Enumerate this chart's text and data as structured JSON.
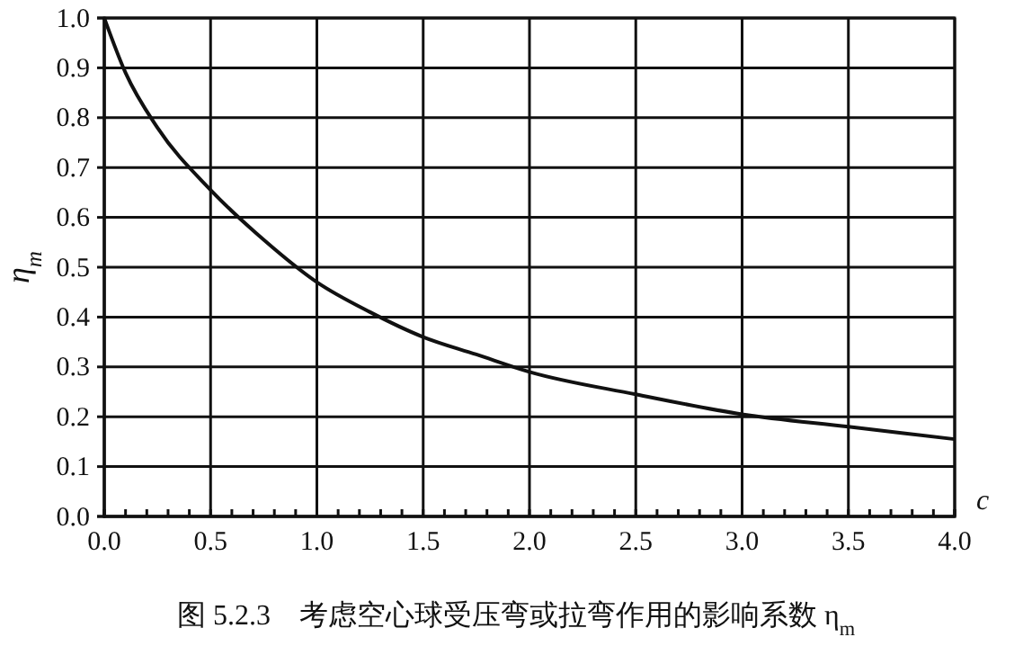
{
  "chart_data": {
    "type": "line",
    "title": "图 5.2.3　考虑空心球受压弯或拉弯作用的影响系数 η$_{m}$",
    "xlabel": "c",
    "ylabel": "η$_{m}$",
    "x": [
      0,
      0.1,
      0.25,
      0.5,
      0.75,
      1.0,
      1.25,
      1.5,
      1.75,
      2.0,
      2.5,
      3.0,
      3.5,
      4.0
    ],
    "series": [
      {
        "color": "#111111",
        "values": [
          1.0,
          0.89,
          0.78,
          0.655,
          0.555,
          0.47,
          0.41,
          0.36,
          0.325,
          0.29,
          0.245,
          0.205,
          0.18,
          0.155
        ]
      }
    ],
    "xlim": [
      0,
      4
    ],
    "ylim": [
      0,
      1
    ],
    "xticks": [
      {
        "value": 0,
        "label": "0.0"
      },
      {
        "value": 0.1,
        "label": null
      },
      {
        "value": 0.2,
        "label": null
      },
      {
        "value": 0.3,
        "label": null
      },
      {
        "value": 0.4,
        "label": null
      },
      {
        "value": 0.5,
        "label": "0.5"
      },
      {
        "value": 0.6,
        "label": null
      },
      {
        "value": 0.7,
        "label": null
      },
      {
        "value": 0.8,
        "label": null
      },
      {
        "value": 0.9,
        "label": null
      },
      {
        "value": 1,
        "label": "1.0"
      },
      {
        "value": 1.1,
        "label": null
      },
      {
        "value": 1.2,
        "label": null
      },
      {
        "value": 1.3,
        "label": null
      },
      {
        "value": 1.4,
        "label": null
      },
      {
        "value": 1.5,
        "label": "1.5"
      },
      {
        "value": 1.6,
        "label": null
      },
      {
        "value": 1.7,
        "label": null
      },
      {
        "value": 1.8,
        "label": null
      },
      {
        "value": 1.9,
        "label": null
      },
      {
        "value": 2,
        "label": "2.0"
      },
      {
        "value": 2.1,
        "label": null
      },
      {
        "value": 2.2,
        "label": null
      },
      {
        "value": 2.3,
        "label": null
      },
      {
        "value": 2.4,
        "label": null
      },
      {
        "value": 2.5,
        "label": "2.5"
      },
      {
        "value": 2.6,
        "label": null
      },
      {
        "value": 2.7,
        "label": null
      },
      {
        "value": 2.8,
        "label": null
      },
      {
        "value": 2.9,
        "label": null
      },
      {
        "value": 3,
        "label": "3.0"
      },
      {
        "value": 3.1,
        "label": null
      },
      {
        "value": 3.2,
        "label": null
      },
      {
        "value": 3.3,
        "label": null
      },
      {
        "value": 3.4,
        "label": null
      },
      {
        "value": 3.5,
        "label": "3.5"
      },
      {
        "value": 3.6,
        "label": null
      },
      {
        "value": 3.7,
        "label": null
      },
      {
        "value": 3.8,
        "label": null
      },
      {
        "value": 3.9,
        "label": null
      },
      {
        "value": 4,
        "label": "4.0"
      }
    ],
    "yticks": [
      {
        "value": 0,
        "label": "0.0"
      },
      0.1,
      0.2,
      0.3,
      0.4,
      0.5,
      0.6,
      0.7,
      0.8,
      0.9,
      {
        "value": 1,
        "label": "1.0"
      }
    ],
    "grid": true,
    "marker": "none",
    "line_style": "solid"
  }
}
